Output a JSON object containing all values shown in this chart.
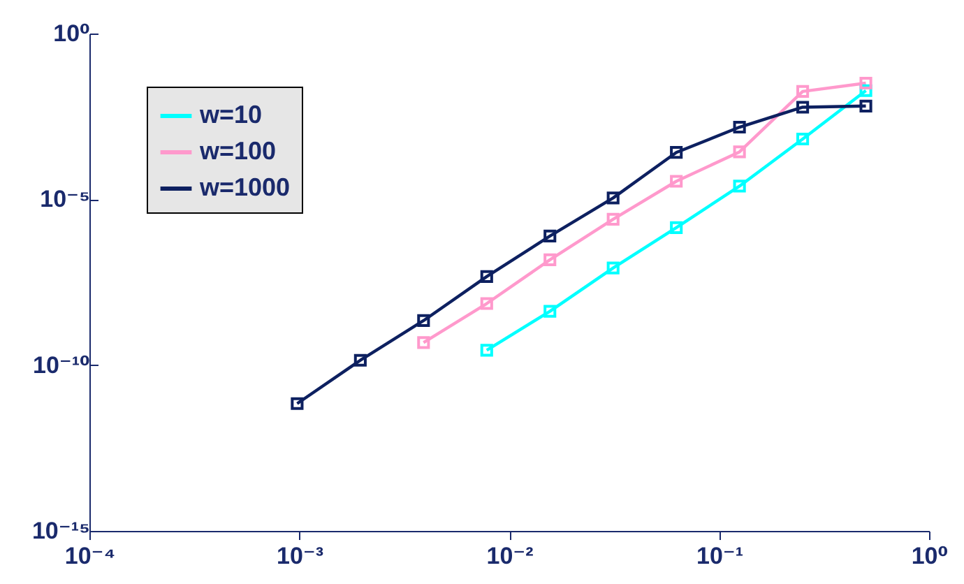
{
  "chart_data": {
    "type": "line",
    "log": "xy",
    "grid": false,
    "legend": "top left",
    "marker": "square",
    "line_style": "solid",
    "x": [
      0.0009765625,
      0.001953125,
      0.00390625,
      0.0078125,
      0.015625,
      0.03125,
      0.0625,
      0.125,
      0.25,
      0.5
    ],
    "series": [
      {
        "name": "w=10",
        "color": "#00ffff",
        "values": [
          null,
          null,
          null,
          2.8e-10,
          4.2e-09,
          8.5e-08,
          1.4e-06,
          2.5e-05,
          0.00066,
          0.019
        ]
      },
      {
        "name": "w=100",
        "color": "#ff99cc",
        "values": [
          null,
          null,
          4.8e-10,
          7.2e-09,
          1.5e-07,
          2.5e-06,
          3.5e-05,
          0.00027,
          0.018,
          0.032
        ]
      },
      {
        "name": "w=1000",
        "color": "#0d2060",
        "values": [
          6.9e-12,
          1.4e-10,
          2.2e-09,
          4.7e-08,
          7.8e-07,
          1.1e-05,
          0.00026,
          0.0015,
          0.006,
          0.0065
        ]
      }
    ],
    "xlim": [
      0.0001,
      1
    ],
    "ylim": [
      1e-15,
      1
    ],
    "xticks": [
      {
        "value": 0.0001,
        "label": "10⁻⁴"
      },
      {
        "value": 0.001,
        "label": "10⁻³"
      },
      {
        "value": 0.01,
        "label": "10⁻²"
      },
      {
        "value": 0.1,
        "label": "10⁻¹"
      },
      {
        "value": 1,
        "label": "10⁰"
      }
    ],
    "yticks": [
      {
        "value": 1e-15,
        "label": "10⁻¹⁵"
      },
      {
        "value": 1e-10,
        "label": "10⁻¹⁰"
      },
      {
        "value": 1e-05,
        "label": "10⁻⁵"
      },
      {
        "value": 1,
        "label": "10⁰"
      }
    ]
  }
}
